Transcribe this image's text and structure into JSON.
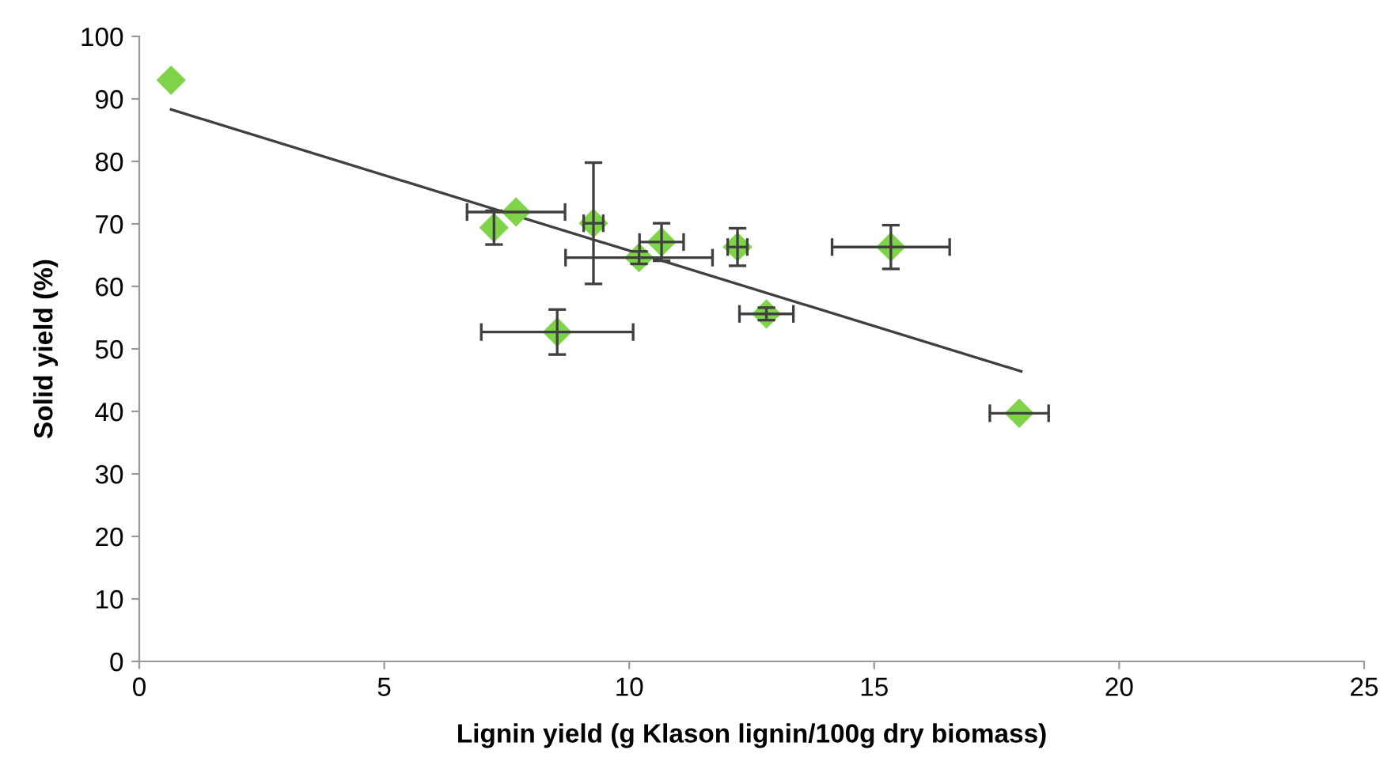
{
  "chart_data": {
    "type": "scatter",
    "xlabel": "Lignin yield (g Klason lignin/100g dry biomass)",
    "ylabel": "Solid yield (%)",
    "xlim": [
      0,
      25
    ],
    "xticks": [
      0,
      5,
      10,
      15,
      20,
      25
    ],
    "ylim": [
      0,
      100
    ],
    "yticks": [
      0,
      10,
      20,
      30,
      40,
      50,
      60,
      70,
      80,
      90,
      100
    ],
    "grid": false,
    "legend": false,
    "series": [
      {
        "color": "#7ed348",
        "marker": "diamond",
        "x": [
          0.65,
          7.24,
          7.69,
          8.53,
          9.27,
          10.2,
          10.66,
          12.21,
          12.8,
          15.34,
          17.96
        ],
        "values": [
          93,
          69.4,
          71.9,
          52.7,
          70.1,
          64.6,
          67.1,
          66.3,
          55.6,
          66.3,
          39.7
        ],
        "errors": [
          null,
          2.7,
          null,
          3.6,
          9.7,
          1,
          3,
          3,
          1,
          3.5,
          null
        ],
        "xerrors": [
          null,
          null,
          1,
          1.55,
          0.2,
          1.5,
          0.45,
          0.2,
          0.55,
          1.2,
          0.6
        ]
      },
      {
        "type": "line",
        "color": "#404040",
        "marker": "none",
        "x": [
          0.65,
          18.0
        ],
        "values": [
          88.3,
          46.4
        ]
      }
    ]
  }
}
